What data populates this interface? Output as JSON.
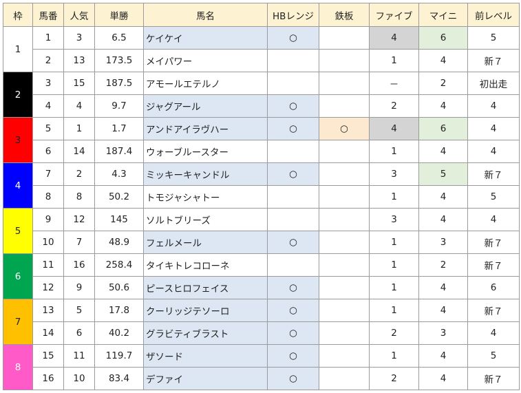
{
  "headers": [
    "枠",
    "馬番",
    "人気",
    "単勝",
    "馬名",
    "HBレンジ",
    "鉄板",
    "ファイブ",
    "マイニ",
    "前レベル"
  ],
  "frames": [
    {
      "label": "1",
      "color": "#ffffff"
    },
    {
      "label": "2",
      "color": "#000000"
    },
    {
      "label": "3",
      "color": "#ff0000"
    },
    {
      "label": "4",
      "color": "#0000ff"
    },
    {
      "label": "5",
      "color": "#ffff00"
    },
    {
      "label": "6",
      "color": "#00a550"
    },
    {
      "label": "7",
      "color": "#ffc000"
    },
    {
      "label": "8",
      "color": "#ff5ac8"
    }
  ],
  "rows": [
    {
      "umaban": "1",
      "ninki": "3",
      "tansho": "6.5",
      "name": "ケイケイ",
      "hb": "○",
      "teppan": "",
      "five": "4",
      "maini": "6",
      "prev": "5"
    },
    {
      "umaban": "2",
      "ninki": "13",
      "tansho": "173.5",
      "name": "メイパワー",
      "hb": "",
      "teppan": "",
      "five": "1",
      "maini": "4",
      "prev": "新７"
    },
    {
      "umaban": "3",
      "ninki": "15",
      "tansho": "187.5",
      "name": "アモールエテルノ",
      "hb": "",
      "teppan": "",
      "five": "－",
      "maini": "2",
      "prev": "初出走"
    },
    {
      "umaban": "4",
      "ninki": "4",
      "tansho": "9.7",
      "name": "ジャグアール",
      "hb": "○",
      "teppan": "",
      "five": "2",
      "maini": "4",
      "prev": "4"
    },
    {
      "umaban": "5",
      "ninki": "1",
      "tansho": "1.7",
      "name": "アンドアイラヴハー",
      "hb": "○",
      "teppan": "○",
      "five": "4",
      "maini": "6",
      "prev": "4"
    },
    {
      "umaban": "6",
      "ninki": "14",
      "tansho": "187.4",
      "name": "ウォーブルースター",
      "hb": "",
      "teppan": "",
      "five": "1",
      "maini": "4",
      "prev": "4"
    },
    {
      "umaban": "7",
      "ninki": "2",
      "tansho": "4.3",
      "name": "ミッキーキャンドル",
      "hb": "○",
      "teppan": "",
      "five": "3",
      "maini": "5",
      "prev": "新７"
    },
    {
      "umaban": "8",
      "ninki": "8",
      "tansho": "50.2",
      "name": "トモジャシャトー",
      "hb": "",
      "teppan": "",
      "five": "1",
      "maini": "4",
      "prev": "5"
    },
    {
      "umaban": "9",
      "ninki": "12",
      "tansho": "145",
      "name": "ソルトブリーズ",
      "hb": "",
      "teppan": "",
      "five": "3",
      "maini": "4",
      "prev": "4"
    },
    {
      "umaban": "10",
      "ninki": "7",
      "tansho": "48.9",
      "name": "フェルメール",
      "hb": "○",
      "teppan": "",
      "five": "1",
      "maini": "3",
      "prev": "新７"
    },
    {
      "umaban": "11",
      "ninki": "16",
      "tansho": "258.4",
      "name": "タイキトレコローネ",
      "hb": "",
      "teppan": "",
      "five": "1",
      "maini": "2",
      "prev": "新７"
    },
    {
      "umaban": "12",
      "ninki": "9",
      "tansho": "50.6",
      "name": "ピースヒロフェイス",
      "hb": "○",
      "teppan": "",
      "five": "1",
      "maini": "4",
      "prev": "6"
    },
    {
      "umaban": "13",
      "ninki": "5",
      "tansho": "17.8",
      "name": "クーリッジテソーロ",
      "hb": "○",
      "teppan": "",
      "five": "1",
      "maini": "4",
      "prev": "新７"
    },
    {
      "umaban": "14",
      "ninki": "6",
      "tansho": "40.2",
      "name": "グラビティブラスト",
      "hb": "○",
      "teppan": "",
      "five": "2",
      "maini": "3",
      "prev": "4"
    },
    {
      "umaban": "15",
      "ninki": "11",
      "tansho": "119.7",
      "name": "ザソード",
      "hb": "○",
      "teppan": "",
      "five": "1",
      "maini": "4",
      "prev": "5"
    },
    {
      "umaban": "16",
      "ninki": "10",
      "tansho": "83.4",
      "name": "デファイ",
      "hb": "○",
      "teppan": "",
      "five": "2",
      "maini": "4",
      "prev": "新７"
    }
  ]
}
